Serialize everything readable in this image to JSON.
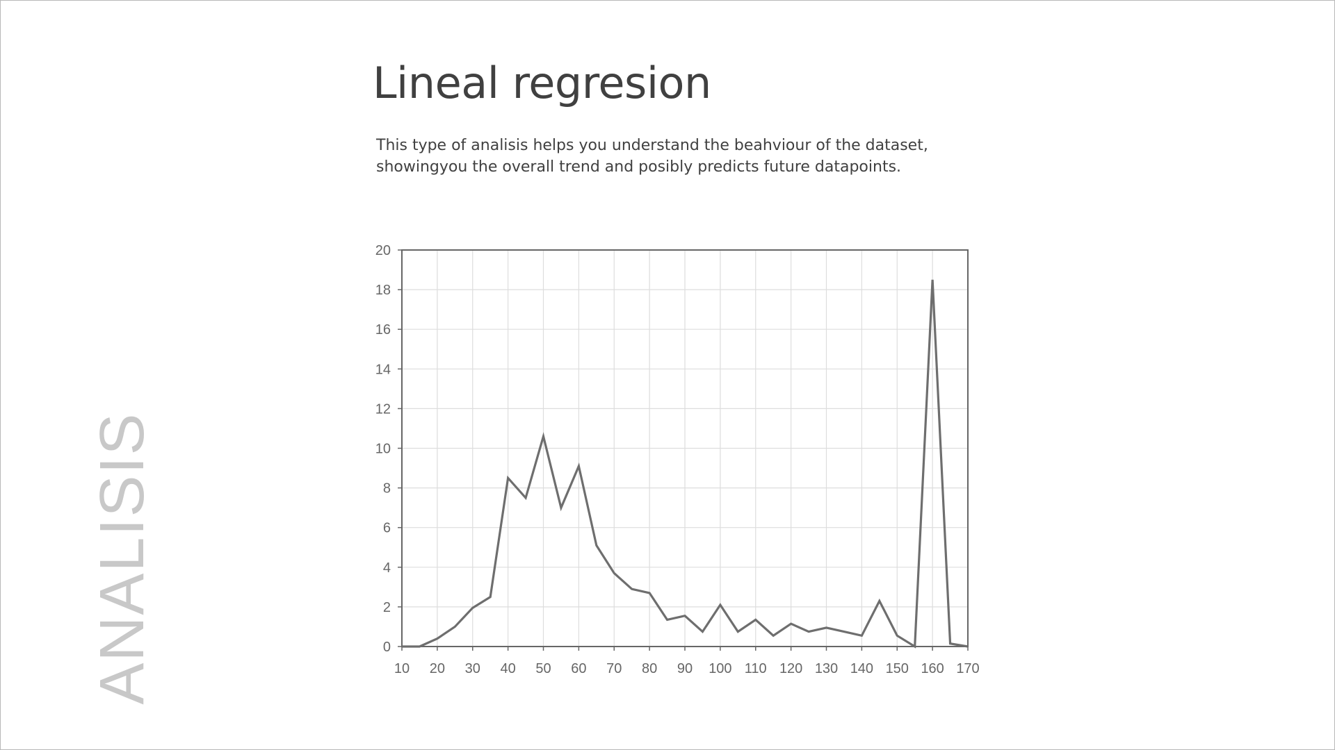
{
  "slide": {
    "side_label": "ANALISIS",
    "title": "Lineal regresion",
    "description_lines": [
      "This type of analisis helps you understand the beahviour of the dataset,",
      "showingyou the overall trend and posibly predicts future datapoints."
    ]
  },
  "colors": {
    "title": "#404040",
    "side_label": "#c8c8c8",
    "line": "#6e6e6e",
    "grid": "#dddddd",
    "axis": "#666666"
  },
  "chart_data": {
    "type": "line",
    "title": "",
    "xlabel": "",
    "ylabel": "",
    "xlim": [
      10,
      170
    ],
    "ylim": [
      0,
      20
    ],
    "grid": true,
    "x_ticks": [
      10,
      20,
      30,
      40,
      50,
      60,
      70,
      80,
      90,
      100,
      110,
      120,
      130,
      140,
      150,
      160,
      170
    ],
    "y_ticks": [
      0,
      2,
      4,
      6,
      8,
      10,
      12,
      14,
      16,
      18,
      20
    ],
    "series": [
      {
        "x": [
          10,
          15,
          20,
          25,
          30,
          35,
          40,
          45,
          50,
          55,
          60,
          65,
          70,
          75,
          80,
          85,
          90,
          95,
          100,
          105,
          110,
          115,
          120,
          125,
          130,
          135,
          140,
          145,
          150,
          155,
          160,
          165,
          170
        ],
        "values": [
          0,
          0,
          0.4,
          1,
          1.95,
          2.5,
          8.5,
          7.5,
          10.6,
          7,
          9.1,
          5.1,
          3.7,
          2.9,
          2.7,
          1.35,
          1.55,
          0.75,
          2.1,
          0.75,
          1.35,
          0.55,
          1.15,
          0.75,
          0.95,
          0.75,
          0.55,
          2.3,
          0.55,
          0,
          18.5,
          0.15,
          0
        ]
      }
    ]
  }
}
